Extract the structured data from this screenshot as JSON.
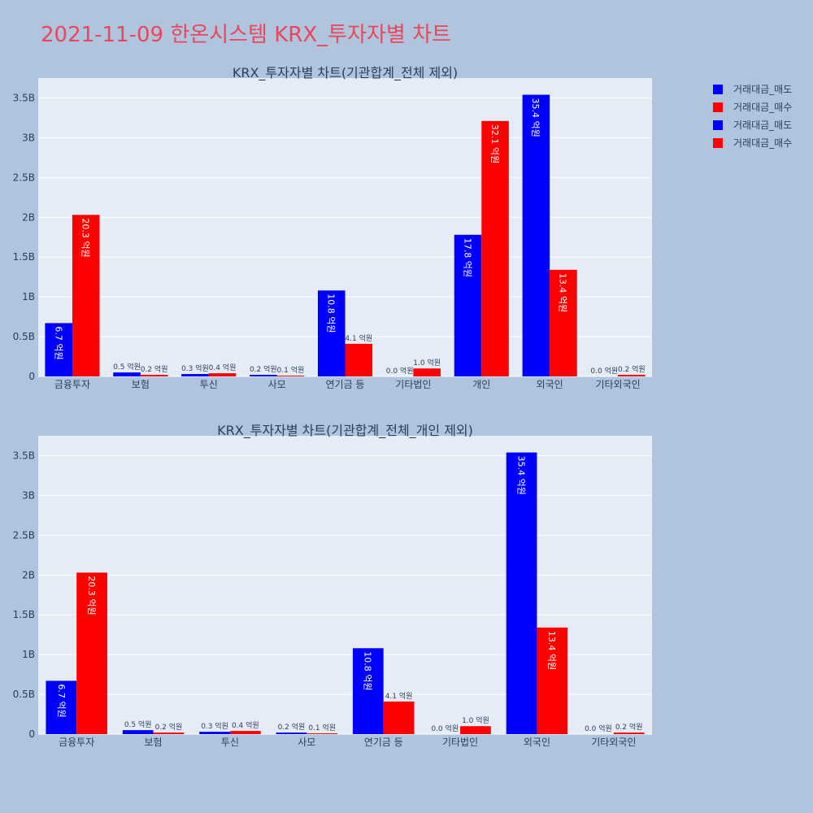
{
  "page_title": "2021-11-09 한온시스템 KRX_투자자별 차트",
  "colors": {
    "sell": "#0000ff",
    "buy": "#ff0000",
    "plot_bg": "#e5ecf6",
    "paper_bg": "#b0c4de",
    "title": "#e8475c"
  },
  "legend": [
    "거래대금_매도",
    "거래대금_매수",
    "거래대금_매도",
    "거래대금_매수"
  ],
  "chart_data": [
    {
      "type": "bar",
      "title": "KRX_투자자별 차트(기관합계_전체 제외)",
      "categories": [
        "금융투자",
        "보험",
        "투신",
        "사모",
        "연기금 등",
        "기타법인",
        "개인",
        "외국인",
        "기타외국인"
      ],
      "y_ticks": [
        "0",
        "0.5B",
        "1B",
        "1.5B",
        "2B",
        "2.5B",
        "3B",
        "3.5B"
      ],
      "ylim": [
        0,
        3.75
      ],
      "series": [
        {
          "name": "거래대금_매도",
          "color": "#0000ff",
          "values": [
            0.67,
            0.05,
            0.03,
            0.02,
            1.08,
            0.0,
            1.78,
            3.54,
            0.0
          ],
          "labels": [
            "6.7 억원",
            "0.5 억원",
            "0.3 억원",
            "0.2 억원",
            "10.8 억원",
            "0.0 억원",
            "17.8 억원",
            "35.4 억원",
            "0.0 억원"
          ]
        },
        {
          "name": "거래대금_매수",
          "color": "#ff0000",
          "values": [
            2.03,
            0.02,
            0.04,
            0.01,
            0.41,
            0.1,
            3.21,
            1.34,
            0.02
          ],
          "labels": [
            "20.3 억원",
            "0.2 억원",
            "0.4 억원",
            "0.1 억원",
            "4.1 억원",
            "1.0 억원",
            "32.1 억원",
            "13.4 억원",
            "0.2 억원"
          ]
        }
      ]
    },
    {
      "type": "bar",
      "title": "KRX_투자자별 차트(기관합계_전체_개인 제외)",
      "categories": [
        "금융투자",
        "보험",
        "투신",
        "사모",
        "연기금 등",
        "기타법인",
        "외국인",
        "기타외국인"
      ],
      "y_ticks": [
        "0",
        "0.5B",
        "1B",
        "1.5B",
        "2B",
        "2.5B",
        "3B",
        "3.5B"
      ],
      "ylim": [
        0,
        3.75
      ],
      "series": [
        {
          "name": "거래대금_매도",
          "color": "#0000ff",
          "values": [
            0.67,
            0.05,
            0.03,
            0.02,
            1.08,
            0.0,
            3.54,
            0.0
          ],
          "labels": [
            "6.7 억원",
            "0.5 억원",
            "0.3 억원",
            "0.2 억원",
            "10.8 억원",
            "0.0 억원",
            "35.4 억원",
            "0.0 억원"
          ]
        },
        {
          "name": "거래대금_매수",
          "color": "#ff0000",
          "values": [
            2.03,
            0.02,
            0.04,
            0.01,
            0.41,
            0.1,
            1.34,
            0.02
          ],
          "labels": [
            "20.3 억원",
            "0.2 억원",
            "0.4 억원",
            "0.1 억원",
            "4.1 억원",
            "1.0 억원",
            "13.4 억원",
            "0.2 억원"
          ]
        }
      ]
    }
  ]
}
